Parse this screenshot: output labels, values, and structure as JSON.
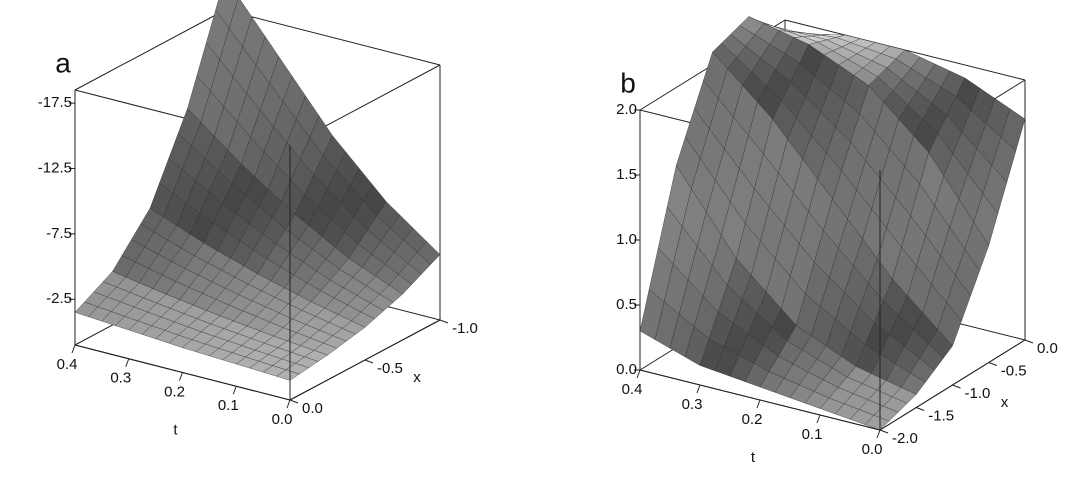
{
  "chart_data": [
    {
      "type": "surface",
      "label": "a",
      "t": [
        0,
        0.1,
        0.2,
        0.3,
        0.4
      ],
      "x": [
        0,
        -0.25,
        -0.5,
        -0.75,
        -1
      ],
      "z": [
        [
          -0.5,
          -0.9,
          -1.5,
          -2.5,
          -4
        ],
        [
          -0.7,
          -1.3,
          -2.4,
          -4.2,
          -7
        ],
        [
          -0.9,
          -1.8,
          -3.5,
          -6.5,
          -11
        ],
        [
          -1.2,
          -2.4,
          -4.8,
          -9.3,
          -16
        ],
        [
          -1.5,
          -3.1,
          -6.4,
          -12.5,
          -21
        ]
      ],
      "tlim": [
        0,
        0.4
      ],
      "xlim": [
        0,
        -1
      ],
      "zlim": [
        1,
        -18.5
      ],
      "tticks": [
        {
          "value": 0,
          "label": "0.0"
        },
        0.1,
        0.2,
        0.3,
        0.4
      ],
      "xticks": [
        {
          "value": 0,
          "label": "0.0"
        },
        -0.5,
        {
          "value": -1,
          "label": "-1.0"
        }
      ],
      "zticks": [
        -2.5,
        -7.5,
        -12.5,
        -17.5
      ],
      "t_label": "t",
      "x_label": "x"
    },
    {
      "type": "surface",
      "label": "b",
      "t": [
        0,
        0.1,
        0.2,
        0.3,
        0.4
      ],
      "x": [
        -2,
        -1.5,
        -1,
        -0.5,
        0
      ],
      "z": [
        [
          0.0,
          0.1,
          0.3,
          0.9,
          1.7
        ],
        [
          0.05,
          0.2,
          0.7,
          1.5,
          1.9
        ],
        [
          0.1,
          0.4,
          1.2,
          1.9,
          2.0
        ],
        [
          0.15,
          0.8,
          1.7,
          2.1,
          2.0
        ],
        [
          0.3,
          1.4,
          2.1,
          2.2,
          1.9
        ]
      ],
      "tlim": [
        0,
        0.4
      ],
      "xlim": [
        -2,
        0
      ],
      "zlim": [
        0,
        2
      ],
      "tticks": [
        {
          "value": 0,
          "label": "0.0"
        },
        0.1,
        0.2,
        0.3,
        0.4
      ],
      "xticks": [
        {
          "value": 0,
          "label": "0.0"
        },
        -0.5,
        {
          "value": -1,
          "label": "-1.0"
        },
        -1.5,
        {
          "value": -2,
          "label": "-2.0"
        }
      ],
      "zticks": [
        {
          "value": 0,
          "label": "0.0"
        },
        0.5,
        {
          "value": 1,
          "label": "1.0"
        },
        1.5,
        {
          "value": 2,
          "label": "2.0"
        }
      ],
      "t_label": "t",
      "x_label": "x"
    }
  ]
}
